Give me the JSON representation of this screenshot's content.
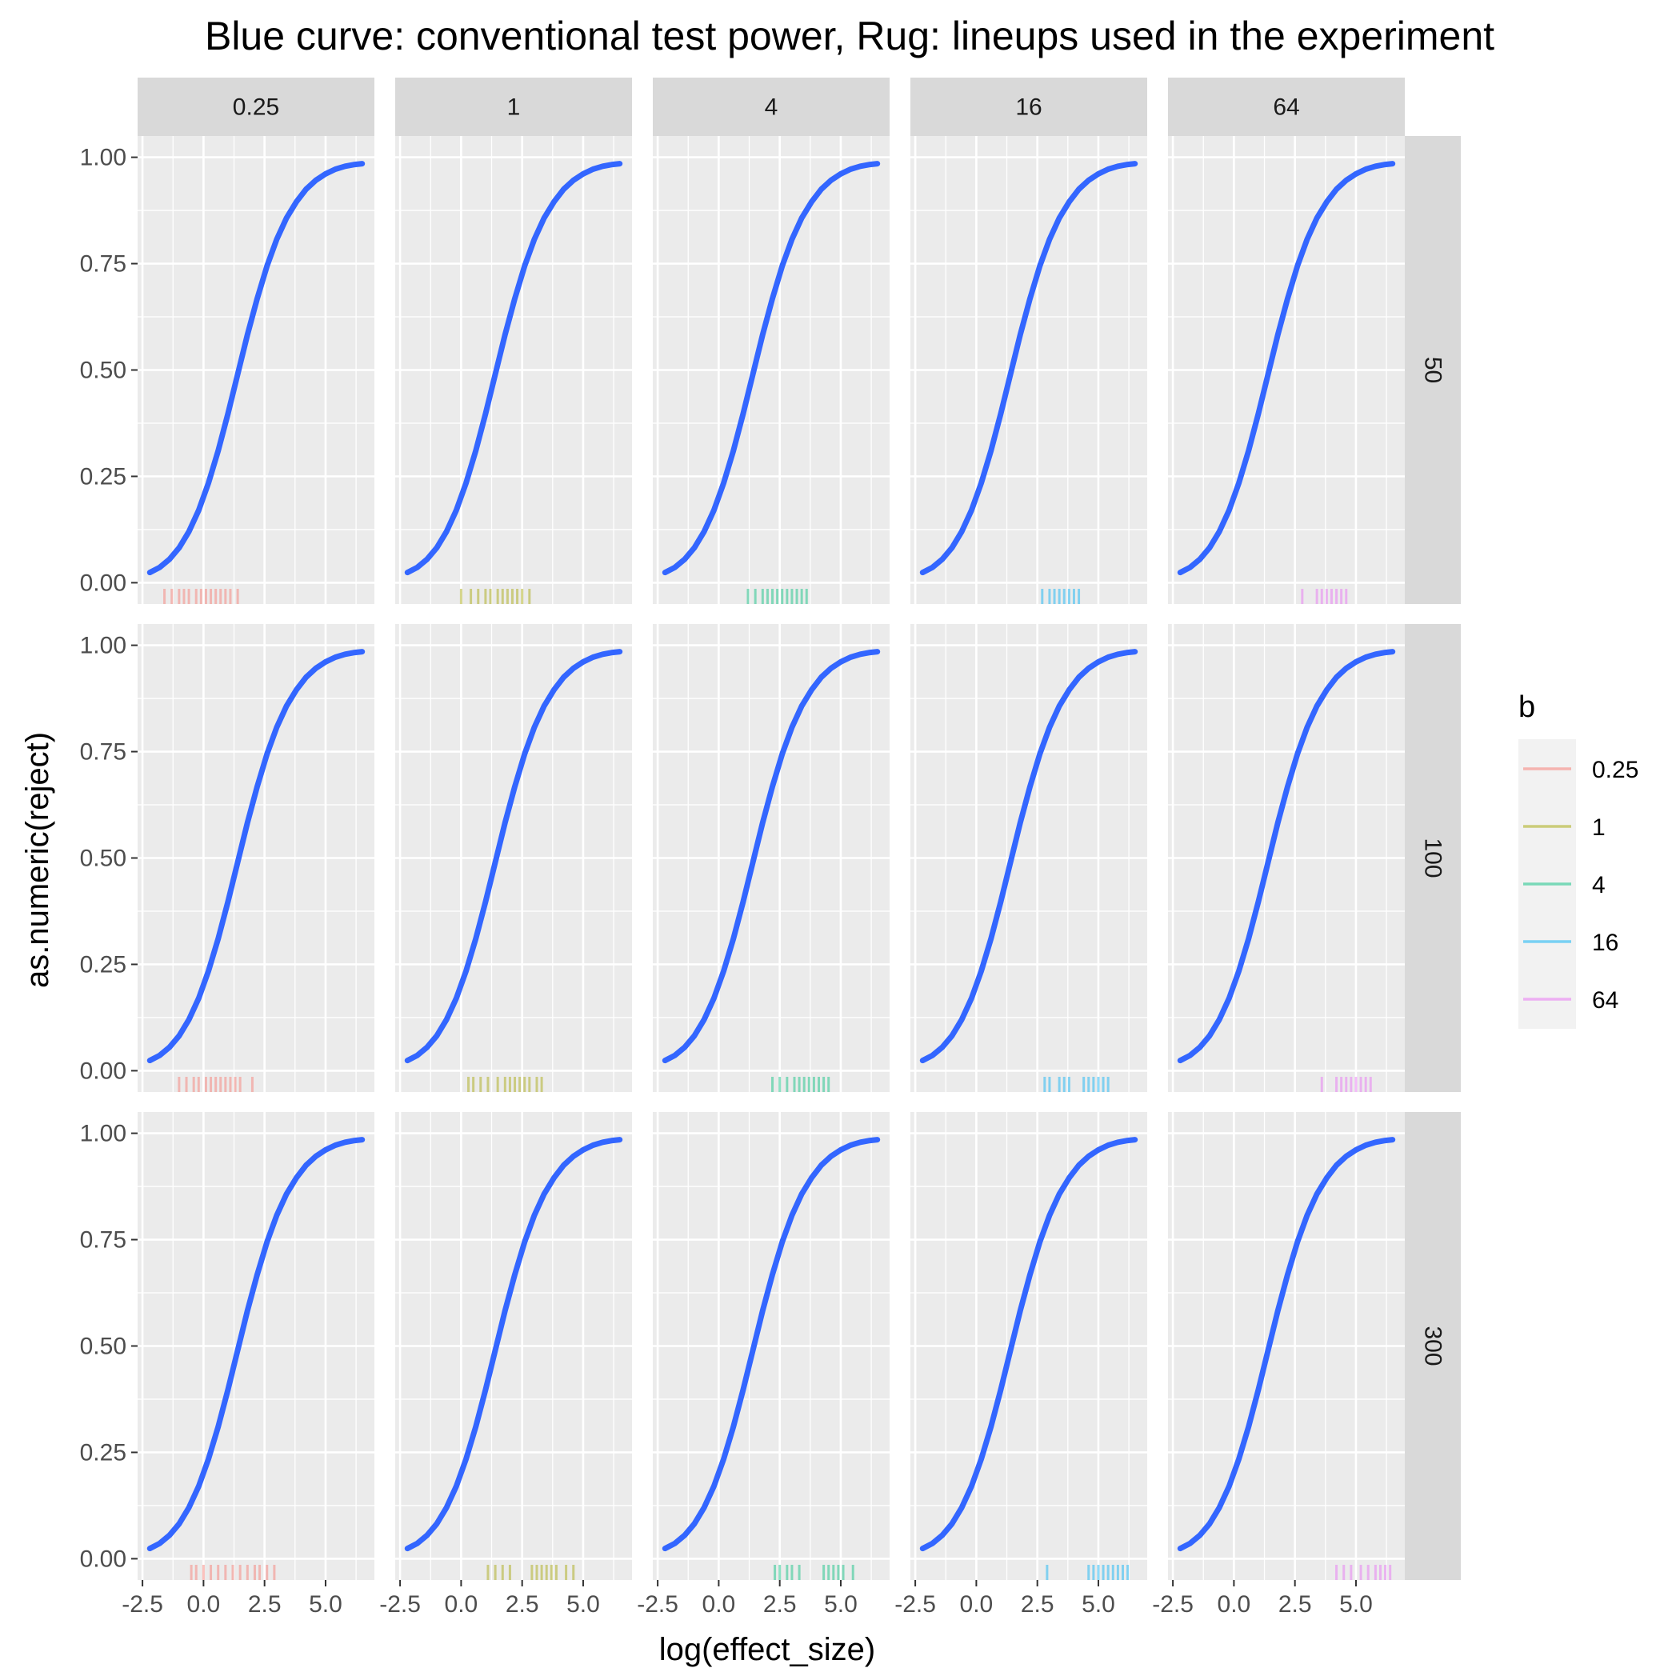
{
  "chart_data": {
    "type": "line",
    "title": "Blue curve: conventional test power, Rug: lineups used in the experiment",
    "xlabel": "log(effect_size)",
    "ylabel": "as.numeric(reject)",
    "xlim": [
      -2.7,
      7.0
    ],
    "ylim": [
      -0.05,
      1.05
    ],
    "x_ticks": [
      "-2.5",
      "0.0",
      "2.5",
      "5.0"
    ],
    "x_tick_values": [
      -2.5,
      0.0,
      2.5,
      5.0
    ],
    "y_ticks": [
      "0.00",
      "0.25",
      "0.50",
      "0.75",
      "1.00"
    ],
    "y_tick_values": [
      0.0,
      0.25,
      0.5,
      0.75,
      1.0
    ],
    "grid": true,
    "facet_cols": [
      "0.25",
      "1",
      "4",
      "16",
      "64"
    ],
    "facet_rows": [
      "50",
      "100",
      "300"
    ],
    "curve_color": "#3366FF",
    "curve_x": [
      -2.2,
      -1.8,
      -1.4,
      -1.0,
      -0.6,
      -0.2,
      0.2,
      0.6,
      1.0,
      1.4,
      1.8,
      2.2,
      2.6,
      3.0,
      3.4,
      3.8,
      4.2,
      4.6,
      5.0,
      5.4,
      5.8,
      6.2,
      6.5
    ],
    "curve_y": [
      0.024,
      0.036,
      0.055,
      0.082,
      0.12,
      0.17,
      0.234,
      0.31,
      0.397,
      0.49,
      0.583,
      0.668,
      0.744,
      0.807,
      0.857,
      0.895,
      0.925,
      0.946,
      0.961,
      0.972,
      0.979,
      0.983,
      0.985
    ],
    "legend": {
      "title": "b",
      "position": "right",
      "entries": [
        {
          "label": "0.25",
          "color": "#F8766D"
        },
        {
          "label": "1",
          "color": "#A3A500"
        },
        {
          "label": "4",
          "color": "#00BF7D"
        },
        {
          "label": "16",
          "color": "#00B0F6"
        },
        {
          "label": "64",
          "color": "#E76BF3"
        }
      ]
    },
    "rug": [
      [
        [
          -1.6,
          -1.3,
          -1.0,
          -0.8,
          -0.6,
          -0.3,
          -0.1,
          0.1,
          0.3,
          0.5,
          0.7,
          0.9,
          1.1,
          1.4
        ],
        [
          0.0,
          0.4,
          0.7,
          1.0,
          1.2,
          1.5,
          1.7,
          1.9,
          2.1,
          2.3,
          2.5,
          2.8
        ],
        [
          1.2,
          1.5,
          1.8,
          2.0,
          2.2,
          2.4,
          2.6,
          2.8,
          3.0,
          3.2,
          3.4,
          3.6
        ],
        [
          2.7,
          3.0,
          3.2,
          3.4,
          3.6,
          3.8,
          4.0,
          4.2
        ],
        [
          2.8,
          3.4,
          3.6,
          3.8,
          4.0,
          4.2,
          4.4,
          4.6
        ]
      ],
      [
        [
          -1.0,
          -0.7,
          -0.4,
          -0.2,
          0.1,
          0.3,
          0.5,
          0.7,
          0.9,
          1.1,
          1.3,
          1.5,
          2.0
        ],
        [
          0.3,
          0.5,
          0.8,
          1.1,
          1.5,
          1.8,
          2.0,
          2.2,
          2.4,
          2.6,
          2.8,
          3.1,
          3.3
        ],
        [
          2.2,
          2.5,
          2.8,
          3.1,
          3.3,
          3.5,
          3.7,
          3.9,
          4.1,
          4.3,
          4.5
        ],
        [
          2.8,
          3.0,
          3.4,
          3.6,
          3.8,
          4.4,
          4.6,
          4.8,
          5.0,
          5.2,
          5.4
        ],
        [
          3.6,
          4.2,
          4.4,
          4.6,
          4.8,
          5.0,
          5.2,
          5.4,
          5.6
        ]
      ],
      [
        [
          -0.5,
          -0.3,
          0.0,
          0.3,
          0.6,
          0.9,
          1.2,
          1.5,
          1.8,
          2.1,
          2.3,
          2.6,
          2.9
        ],
        [
          1.1,
          1.4,
          1.7,
          2.0,
          2.9,
          3.1,
          3.3,
          3.5,
          3.7,
          3.9,
          4.3,
          4.6
        ],
        [
          2.3,
          2.5,
          2.8,
          3.0,
          3.3,
          4.3,
          4.5,
          4.7,
          4.9,
          5.1,
          5.5
        ],
        [
          2.9,
          4.6,
          4.8,
          5.0,
          5.2,
          5.4,
          5.6,
          5.8,
          6.0,
          6.2
        ],
        [
          4.2,
          4.5,
          4.8,
          5.2,
          5.5,
          5.8,
          6.0,
          6.2,
          6.4
        ]
      ]
    ]
  }
}
